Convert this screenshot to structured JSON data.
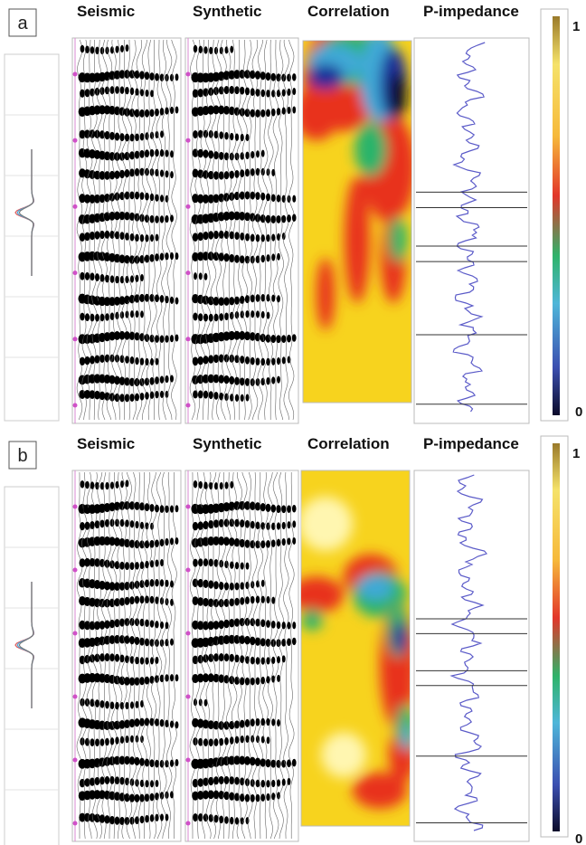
{
  "panels": [
    {
      "label": "a",
      "columns": [
        "Seismic",
        "Synthetic",
        "Correlation",
        "P-impedance"
      ],
      "colorbar": {
        "max": 1,
        "min": 0
      }
    },
    {
      "label": "b",
      "columns": [
        "Seismic",
        "Synthetic",
        "Correlation",
        "P-impedance"
      ],
      "colorbar": {
        "max": 1,
        "min": 0
      }
    }
  ]
}
